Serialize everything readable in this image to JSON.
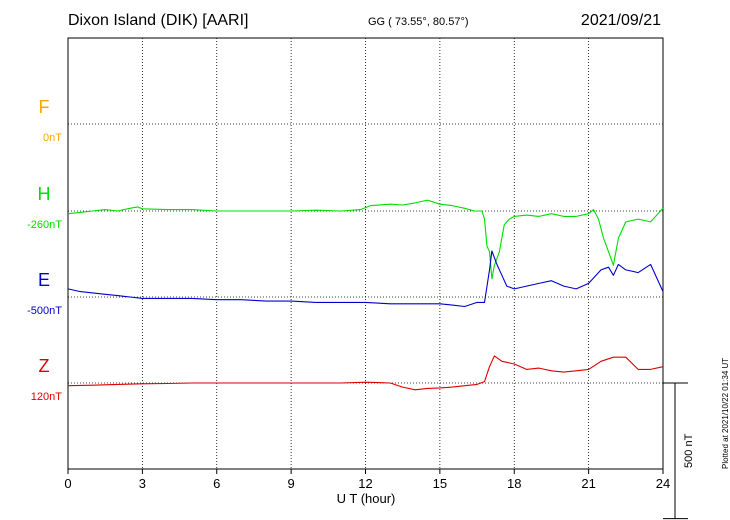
{
  "header": {
    "station": "Dixon Island (DIK)  [AARI]",
    "coords": "GG ( 73.55°,  80.57°)",
    "date": "2021/09/21",
    "plotted": "Plotted at 2021/10/22 01:34 UT"
  },
  "chart_data": {
    "type": "line",
    "title": "Dixon Island (DIK)  [AARI]",
    "xlabel": "U T (hour)",
    "xlim": [
      0,
      24
    ],
    "x_ticks": [
      0,
      3,
      6,
      9,
      12,
      15,
      18,
      21,
      24
    ],
    "grid": true,
    "scale_bar": {
      "label": "500 nT",
      "value": 500
    },
    "unit_nT_per_row": 317,
    "series": [
      {
        "name": "F",
        "baseline": "0nT",
        "color": "#ffa500",
        "row": 0,
        "values": []
      },
      {
        "name": "H",
        "baseline": "-260nT",
        "color": "#00dd00",
        "row": 1,
        "values": [
          [
            0,
            -10
          ],
          [
            0.5,
            -5
          ],
          [
            1,
            0
          ],
          [
            1.5,
            5
          ],
          [
            2,
            0
          ],
          [
            2.5,
            10
          ],
          [
            2.8,
            15
          ],
          [
            3,
            8
          ],
          [
            4,
            5
          ],
          [
            5,
            5
          ],
          [
            6,
            0
          ],
          [
            7,
            0
          ],
          [
            8,
            0
          ],
          [
            9,
            0
          ],
          [
            10,
            3
          ],
          [
            11,
            0
          ],
          [
            11.8,
            5
          ],
          [
            12.2,
            20
          ],
          [
            13,
            25
          ],
          [
            13.5,
            22
          ],
          [
            14,
            30
          ],
          [
            14.5,
            40
          ],
          [
            15,
            25
          ],
          [
            15.5,
            20
          ],
          [
            16,
            10
          ],
          [
            16.4,
            0
          ],
          [
            16.7,
            0
          ],
          [
            16.8,
            -30
          ],
          [
            16.9,
            -130
          ],
          [
            17.0,
            -150
          ],
          [
            17.1,
            -250
          ],
          [
            17.2,
            -200
          ],
          [
            17.4,
            -150
          ],
          [
            17.6,
            -50
          ],
          [
            17.8,
            -30
          ],
          [
            18,
            -20
          ],
          [
            18.5,
            -15
          ],
          [
            19,
            -20
          ],
          [
            19.5,
            -10
          ],
          [
            20,
            -20
          ],
          [
            20.5,
            -20
          ],
          [
            21,
            -10
          ],
          [
            21.2,
            5
          ],
          [
            21.4,
            -30
          ],
          [
            21.6,
            -100
          ],
          [
            21.8,
            -150
          ],
          [
            22,
            -200
          ],
          [
            22.2,
            -100
          ],
          [
            22.5,
            -40
          ],
          [
            23,
            -30
          ],
          [
            23.5,
            -40
          ],
          [
            24,
            10
          ]
        ]
      },
      {
        "name": "E",
        "baseline": "-500nT",
        "color": "#0000cc",
        "row": 2,
        "values": [
          [
            0,
            30
          ],
          [
            0.5,
            20
          ],
          [
            1,
            15
          ],
          [
            1.5,
            10
          ],
          [
            2,
            5
          ],
          [
            2.5,
            0
          ],
          [
            3,
            -5
          ],
          [
            4,
            -5
          ],
          [
            5,
            -5
          ],
          [
            6,
            -10
          ],
          [
            7,
            -10
          ],
          [
            8,
            -15
          ],
          [
            9,
            -15
          ],
          [
            10,
            -20
          ],
          [
            11,
            -20
          ],
          [
            12,
            -20
          ],
          [
            13,
            -25
          ],
          [
            14,
            -25
          ],
          [
            15,
            -25
          ],
          [
            15.5,
            -30
          ],
          [
            16,
            -35
          ],
          [
            16.5,
            -20
          ],
          [
            16.8,
            -20
          ],
          [
            17,
            100
          ],
          [
            17.1,
            170
          ],
          [
            17.3,
            120
          ],
          [
            17.5,
            80
          ],
          [
            17.7,
            40
          ],
          [
            18,
            30
          ],
          [
            18.5,
            40
          ],
          [
            19,
            50
          ],
          [
            19.5,
            60
          ],
          [
            20,
            40
          ],
          [
            20.5,
            30
          ],
          [
            21,
            50
          ],
          [
            21.5,
            100
          ],
          [
            21.8,
            110
          ],
          [
            22,
            80
          ],
          [
            22.2,
            120
          ],
          [
            22.5,
            100
          ],
          [
            23,
            90
          ],
          [
            23.5,
            120
          ],
          [
            24,
            20
          ]
        ]
      },
      {
        "name": "Z",
        "baseline": "120nT",
        "color": "#dd0000",
        "row": 3,
        "values": [
          [
            0,
            -10
          ],
          [
            1,
            -8
          ],
          [
            2,
            -5
          ],
          [
            3,
            -3
          ],
          [
            4,
            -2
          ],
          [
            5,
            0
          ],
          [
            6,
            0
          ],
          [
            7,
            0
          ],
          [
            8,
            0
          ],
          [
            9,
            0
          ],
          [
            10,
            0
          ],
          [
            11,
            0
          ],
          [
            12,
            3
          ],
          [
            13,
            0
          ],
          [
            13.5,
            -15
          ],
          [
            14,
            -25
          ],
          [
            14.5,
            -20
          ],
          [
            15,
            -18
          ],
          [
            15.5,
            -15
          ],
          [
            16,
            -10
          ],
          [
            16.5,
            -5
          ],
          [
            16.8,
            5
          ],
          [
            17,
            60
          ],
          [
            17.2,
            100
          ],
          [
            17.5,
            80
          ],
          [
            18,
            70
          ],
          [
            18.5,
            50
          ],
          [
            19,
            55
          ],
          [
            19.5,
            45
          ],
          [
            20,
            40
          ],
          [
            20.5,
            45
          ],
          [
            21,
            50
          ],
          [
            21.5,
            80
          ],
          [
            22,
            95
          ],
          [
            22.5,
            95
          ],
          [
            23,
            50
          ],
          [
            23.5,
            50
          ],
          [
            24,
            60
          ]
        ]
      }
    ]
  }
}
